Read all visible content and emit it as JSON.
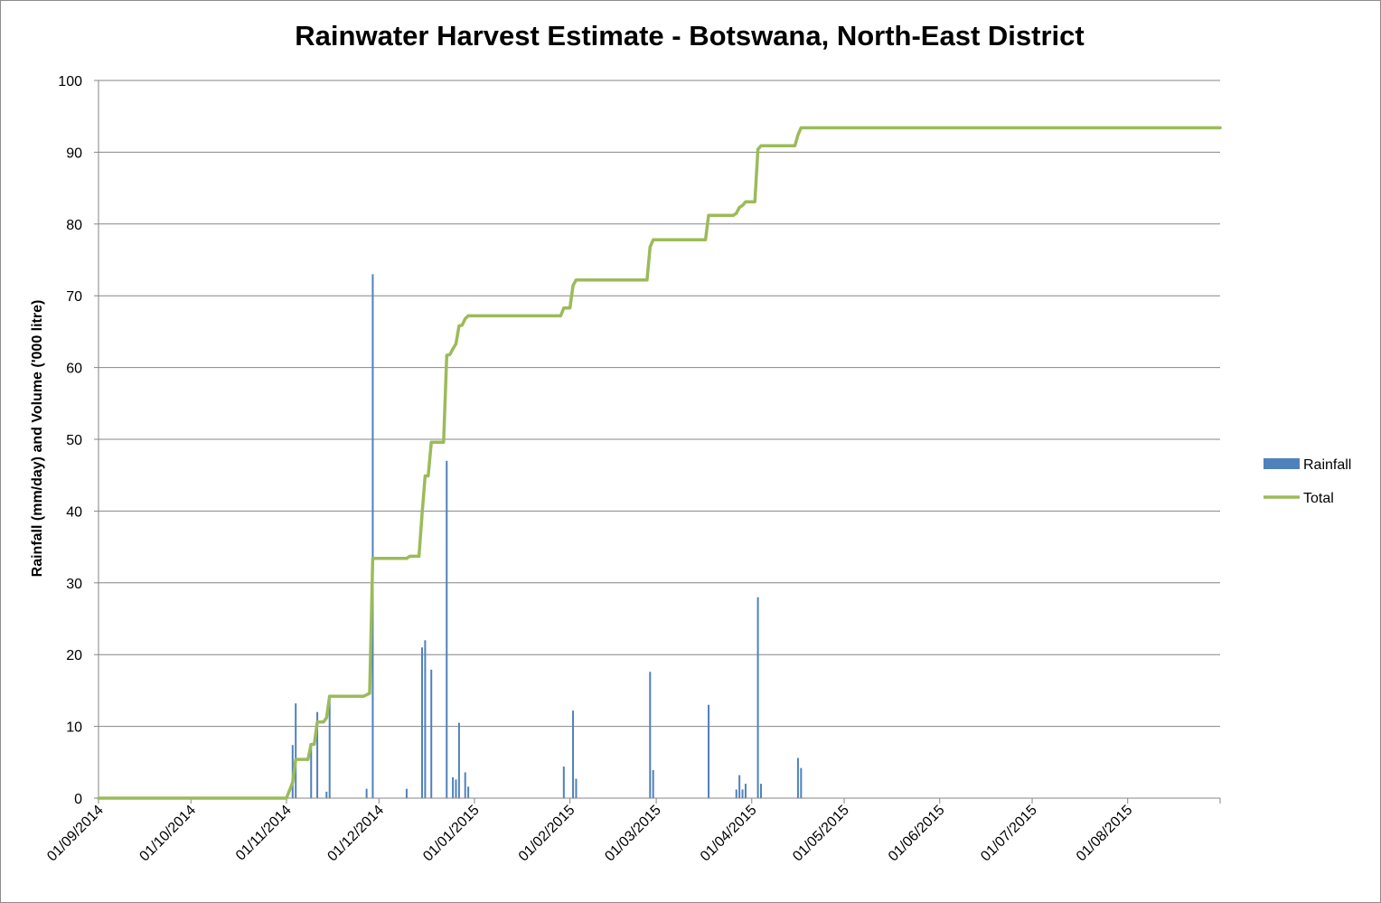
{
  "chart_data": {
    "type": "bar+line",
    "title": "Rainwater Harvest Estimate - Botswana, North-East District",
    "ylabel": "Rainfall (mm/day) and Volume ('000 litre)",
    "xlabel": "",
    "ylim": [
      0,
      100
    ],
    "yticks": [
      0,
      10,
      20,
      30,
      40,
      50,
      60,
      70,
      80,
      90,
      100
    ],
    "xlim": [
      "2014-09-01",
      "2015-08-31"
    ],
    "xticks": [
      "01/09/2014",
      "01/10/2014",
      "01/11/2014",
      "01/12/2014",
      "01/01/2015",
      "01/02/2015",
      "01/03/2015",
      "01/04/2015",
      "01/05/2015",
      "01/06/2015",
      "01/07/2015",
      "01/08/2015"
    ],
    "grid": "horizontal",
    "legend_position": "right",
    "colors": {
      "Rainfall": "#4f81bd",
      "Total": "#9bbb59"
    },
    "series": [
      {
        "name": "Rainfall",
        "type": "bar",
        "points": [
          {
            "x": "2014-11-03",
            "y": 7.4
          },
          {
            "x": "2014-11-04",
            "y": 13.2
          },
          {
            "x": "2014-11-09",
            "y": 7.3
          },
          {
            "x": "2014-11-11",
            "y": 12
          },
          {
            "x": "2014-11-14",
            "y": 0.9
          },
          {
            "x": "2014-11-15",
            "y": 14
          },
          {
            "x": "2014-11-27",
            "y": 1.3
          },
          {
            "x": "2014-11-29",
            "y": 73
          },
          {
            "x": "2014-12-10",
            "y": 1.3
          },
          {
            "x": "2014-12-15",
            "y": 21
          },
          {
            "x": "2014-12-16",
            "y": 22
          },
          {
            "x": "2014-12-18",
            "y": 17.9
          },
          {
            "x": "2014-12-23",
            "y": 47
          },
          {
            "x": "2014-12-25",
            "y": 2.9
          },
          {
            "x": "2014-12-26",
            "y": 2.6
          },
          {
            "x": "2014-12-27",
            "y": 10.5
          },
          {
            "x": "2014-12-29",
            "y": 3.6
          },
          {
            "x": "2014-12-30",
            "y": 1.6
          },
          {
            "x": "2015-01-30",
            "y": 4.4
          },
          {
            "x": "2015-02-02",
            "y": 12.2
          },
          {
            "x": "2015-02-03",
            "y": 2.7
          },
          {
            "x": "2015-02-27",
            "y": 17.6
          },
          {
            "x": "2015-02-28",
            "y": 3.9
          },
          {
            "x": "2015-03-18",
            "y": 13
          },
          {
            "x": "2015-03-27",
            "y": 1.2
          },
          {
            "x": "2015-03-28",
            "y": 3.2
          },
          {
            "x": "2015-03-29",
            "y": 1.2
          },
          {
            "x": "2015-03-30",
            "y": 2
          },
          {
            "x": "2015-04-03",
            "y": 28
          },
          {
            "x": "2015-04-04",
            "y": 2
          },
          {
            "x": "2015-04-16",
            "y": 5.6
          },
          {
            "x": "2015-04-17",
            "y": 4.2
          }
        ]
      },
      {
        "name": "Total",
        "type": "line",
        "points": [
          {
            "x": "2014-09-01",
            "y": 0
          },
          {
            "x": "2014-11-01",
            "y": 0
          },
          {
            "x": "2014-11-03",
            "y": 2.2
          },
          {
            "x": "2014-11-04",
            "y": 5.4
          },
          {
            "x": "2014-11-08",
            "y": 5.4
          },
          {
            "x": "2014-11-09",
            "y": 7.5
          },
          {
            "x": "2014-11-10",
            "y": 7.5
          },
          {
            "x": "2014-11-11",
            "y": 10.6
          },
          {
            "x": "2014-11-13",
            "y": 10.6
          },
          {
            "x": "2014-11-14",
            "y": 11.2
          },
          {
            "x": "2014-11-15",
            "y": 14.2
          },
          {
            "x": "2014-11-26",
            "y": 14.2
          },
          {
            "x": "2014-11-28",
            "y": 14.6
          },
          {
            "x": "2014-11-29",
            "y": 33.4
          },
          {
            "x": "2014-12-10",
            "y": 33.4
          },
          {
            "x": "2014-12-11",
            "y": 33.7
          },
          {
            "x": "2014-12-14",
            "y": 33.7
          },
          {
            "x": "2014-12-15",
            "y": 39.6
          },
          {
            "x": "2014-12-16",
            "y": 44.9
          },
          {
            "x": "2014-12-17",
            "y": 44.9
          },
          {
            "x": "2014-12-18",
            "y": 49.6
          },
          {
            "x": "2014-12-22",
            "y": 49.6
          },
          {
            "x": "2014-12-23",
            "y": 61.7
          },
          {
            "x": "2014-12-24",
            "y": 61.8
          },
          {
            "x": "2014-12-25",
            "y": 62.6
          },
          {
            "x": "2014-12-26",
            "y": 63.3
          },
          {
            "x": "2014-12-27",
            "y": 65.8
          },
          {
            "x": "2014-12-28",
            "y": 65.9
          },
          {
            "x": "2014-12-29",
            "y": 66.8
          },
          {
            "x": "2014-12-30",
            "y": 67.2
          },
          {
            "x": "2015-01-29",
            "y": 67.2
          },
          {
            "x": "2015-01-30",
            "y": 68.3
          },
          {
            "x": "2015-02-01",
            "y": 68.3
          },
          {
            "x": "2015-02-02",
            "y": 71.4
          },
          {
            "x": "2015-02-03",
            "y": 72.2
          },
          {
            "x": "2015-02-26",
            "y": 72.2
          },
          {
            "x": "2015-02-27",
            "y": 76.8
          },
          {
            "x": "2015-02-28",
            "y": 77.8
          },
          {
            "x": "2015-03-17",
            "y": 77.8
          },
          {
            "x": "2015-03-18",
            "y": 81.2
          },
          {
            "x": "2015-03-26",
            "y": 81.2
          },
          {
            "x": "2015-03-27",
            "y": 81.5
          },
          {
            "x": "2015-03-28",
            "y": 82.3
          },
          {
            "x": "2015-03-29",
            "y": 82.6
          },
          {
            "x": "2015-03-30",
            "y": 83.1
          },
          {
            "x": "2015-04-02",
            "y": 83.1
          },
          {
            "x": "2015-04-03",
            "y": 90.4
          },
          {
            "x": "2015-04-04",
            "y": 90.9
          },
          {
            "x": "2015-04-15",
            "y": 90.9
          },
          {
            "x": "2015-04-16",
            "y": 92.4
          },
          {
            "x": "2015-04-17",
            "y": 93.4
          },
          {
            "x": "2015-08-31",
            "y": 93.4
          }
        ]
      }
    ]
  }
}
